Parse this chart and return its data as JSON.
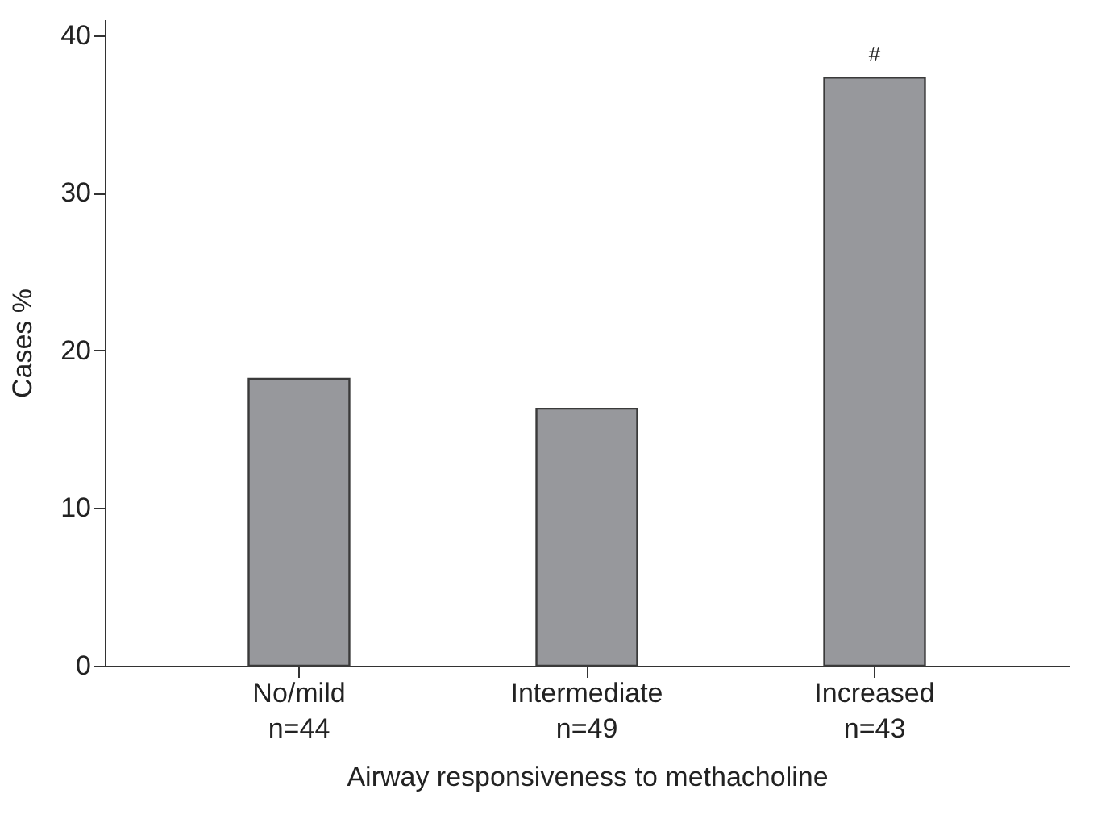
{
  "chart_data": {
    "type": "bar",
    "xlabel": "Airway responsiveness to methacholine",
    "ylabel": "Cases %",
    "categories": [
      "No/mild\nn=44",
      "Intermediate\nn=49",
      "Increased\nn=43"
    ],
    "values": [
      18.2,
      16.3,
      37.3
    ],
    "color": "#97989c",
    "ylim": [
      0,
      41
    ],
    "yticks": [
      0,
      10,
      20,
      30,
      40
    ],
    "grid": false,
    "annotations": [
      {
        "text": "#",
        "x": "Increased\nn=43",
        "y": 37.3
      }
    ]
  }
}
